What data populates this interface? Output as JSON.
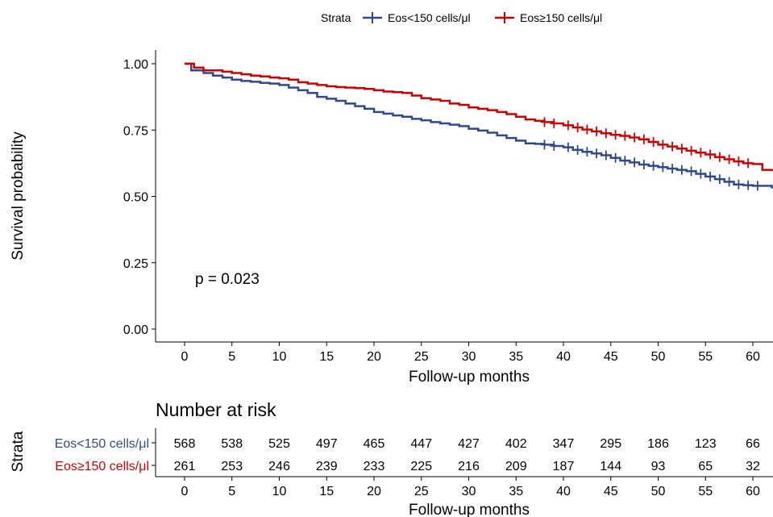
{
  "chart_data": [
    {
      "type": "line",
      "subtype": "kaplan-meier",
      "title": "",
      "xlabel": "Follow-up months",
      "ylabel": "Survival probability",
      "xlim": [
        -3,
        62
      ],
      "ylim": [
        0,
        1
      ],
      "x_ticks": [
        0,
        5,
        10,
        15,
        20,
        25,
        30,
        35,
        40,
        45,
        50,
        55,
        60
      ],
      "y_ticks": [
        "0.00",
        "0.25",
        "0.50",
        "0.75",
        "1.00"
      ],
      "grid": false,
      "legend": {
        "title": "Strata",
        "placement": "top",
        "entries": [
          "Eos<150 cells/μl",
          "Eos≥150 cells/μl"
        ]
      },
      "annotation": "p = 0.023",
      "series": [
        {
          "name": "Eos<150 cells/μl",
          "color": "#2E4A8B",
          "x": [
            0,
            0.7,
            2,
            3,
            4,
            5,
            6,
            7,
            8,
            9,
            10,
            11,
            12,
            13,
            14,
            15,
            16,
            17,
            18,
            19,
            20,
            21,
            22,
            23,
            24,
            25,
            26,
            27,
            28,
            29,
            30,
            31,
            32,
            33,
            34,
            35,
            36,
            37,
            38,
            39,
            40,
            41,
            42,
            43,
            44,
            45,
            46,
            47,
            48,
            49,
            50,
            51,
            52,
            53,
            54,
            55,
            56,
            57,
            58,
            59,
            60,
            61,
            62
          ],
          "y": [
            1.0,
            0.975,
            0.965,
            0.955,
            0.948,
            0.94,
            0.935,
            0.932,
            0.928,
            0.925,
            0.92,
            0.91,
            0.9,
            0.89,
            0.875,
            0.868,
            0.86,
            0.85,
            0.84,
            0.83,
            0.818,
            0.812,
            0.805,
            0.8,
            0.792,
            0.787,
            0.78,
            0.775,
            0.77,
            0.765,
            0.755,
            0.748,
            0.74,
            0.73,
            0.72,
            0.71,
            0.7,
            0.698,
            0.695,
            0.69,
            0.685,
            0.675,
            0.668,
            0.662,
            0.655,
            0.645,
            0.635,
            0.628,
            0.62,
            0.615,
            0.61,
            0.605,
            0.6,
            0.595,
            0.585,
            0.575,
            0.565,
            0.555,
            0.545,
            0.542,
            0.54,
            0.54,
            0.53
          ],
          "censor_x": [
            38,
            39,
            40.5,
            41.5,
            42.5,
            43.5,
            44.5,
            45.5,
            46.5,
            47.5,
            48.5,
            49.5,
            50.5,
            51.5,
            52.5,
            53.5,
            54.5,
            55.5,
            56.5,
            57.5,
            58.5,
            59.5,
            60.5
          ]
        },
        {
          "name": "Eos≥150 cells/μl",
          "color": "#CC0000",
          "x": [
            0,
            1,
            2,
            4,
            5,
            6,
            7,
            8,
            9,
            10,
            11,
            12,
            13,
            14,
            15,
            16,
            17,
            18,
            19,
            20,
            21,
            22,
            23,
            24,
            25,
            26,
            27,
            28,
            29,
            30,
            31,
            32,
            33,
            34,
            35,
            36,
            37,
            38,
            39,
            40,
            41,
            42,
            43,
            44,
            45,
            46,
            47,
            48,
            49,
            50,
            51,
            52,
            53,
            54,
            55,
            56,
            57,
            58,
            59,
            60,
            61,
            62
          ],
          "y": [
            1.0,
            0.985,
            0.975,
            0.97,
            0.965,
            0.96,
            0.955,
            0.952,
            0.948,
            0.945,
            0.94,
            0.93,
            0.925,
            0.92,
            0.915,
            0.912,
            0.91,
            0.908,
            0.905,
            0.9,
            0.895,
            0.893,
            0.89,
            0.88,
            0.87,
            0.865,
            0.86,
            0.85,
            0.845,
            0.835,
            0.83,
            0.825,
            0.818,
            0.81,
            0.8,
            0.79,
            0.785,
            0.78,
            0.775,
            0.768,
            0.76,
            0.752,
            0.745,
            0.738,
            0.732,
            0.728,
            0.722,
            0.715,
            0.705,
            0.695,
            0.688,
            0.68,
            0.672,
            0.665,
            0.658,
            0.648,
            0.64,
            0.632,
            0.625,
            0.622,
            0.6,
            0.595
          ],
          "censor_x": [
            38,
            39,
            40.5,
            41.5,
            42.5,
            43.5,
            44.5,
            45.5,
            46.5,
            47.5,
            48.5,
            49.5,
            50.5,
            51.5,
            52.5,
            53.5,
            54.5,
            55.5,
            56.5,
            57.5,
            58.5,
            59.5
          ]
        }
      ]
    },
    {
      "type": "table",
      "title": "Number at risk",
      "xlabel": "Follow-up months",
      "ylabel": "Strata",
      "x_ticks": [
        0,
        5,
        10,
        15,
        20,
        25,
        30,
        35,
        40,
        45,
        50,
        55,
        60
      ],
      "rows": [
        {
          "label": "Eos<150 cells/μl",
          "color": "#2E4A8B",
          "values": [
            568,
            538,
            525,
            497,
            465,
            447,
            427,
            402,
            347,
            295,
            186,
            123,
            66
          ]
        },
        {
          "label": "Eos≥150 cells/μl",
          "color": "#CC0000",
          "values": [
            261,
            253,
            246,
            239,
            233,
            225,
            216,
            209,
            187,
            144,
            93,
            65,
            32
          ]
        }
      ]
    }
  ]
}
